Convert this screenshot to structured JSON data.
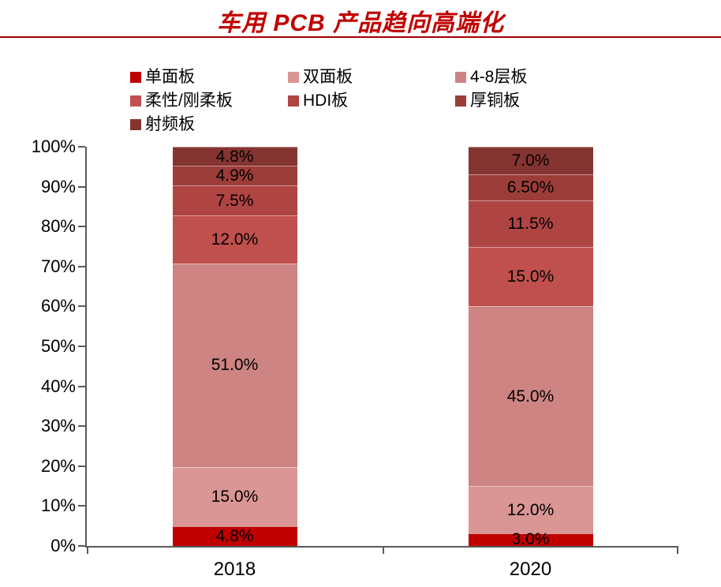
{
  "title": {
    "text": "车用 PCB 产品趋向高端化"
  },
  "style": {
    "title_color": "#C00000",
    "divider_color": "#A00000",
    "axis_color": "#595959",
    "label_color": "#000000",
    "background": "#FFFFFF"
  },
  "chart_data": {
    "type": "bar",
    "stacked": true,
    "title": "车用 PCB 产品趋向高端化",
    "categories": [
      "2018",
      "2020"
    ],
    "series": [
      {
        "name": "单面板",
        "color": "#C00000",
        "values": [
          4.8,
          3.0
        ],
        "labels": [
          "4.8%",
          "3.0%"
        ]
      },
      {
        "name": "双面板",
        "color": "#D99694",
        "values": [
          15.0,
          12.0
        ],
        "labels": [
          "15.0%",
          "12.0%"
        ]
      },
      {
        "name": "4-8层板",
        "color": "#CD8482",
        "values": [
          51.0,
          45.0
        ],
        "labels": [
          "51.0%",
          "45.0%"
        ]
      },
      {
        "name": "柔性/刚柔板",
        "color": "#C0504D",
        "values": [
          12.0,
          15.0
        ],
        "labels": [
          "12.0%",
          "15.0%"
        ]
      },
      {
        "name": "HDI板",
        "color": "#AF4543",
        "values": [
          7.5,
          11.5
        ],
        "labels": [
          "7.5%",
          "11.5%"
        ]
      },
      {
        "name": "厚铜板",
        "color": "#9C3D39",
        "values": [
          4.9,
          6.5
        ],
        "labels": [
          "4.9%",
          "6.50%"
        ]
      },
      {
        "name": "射频板",
        "color": "#843531",
        "values": [
          4.8,
          7.0
        ],
        "labels": [
          "4.8%",
          "7.0%"
        ]
      }
    ],
    "y_ticks": [
      "100%",
      "90%",
      "80%",
      "70%",
      "60%",
      "50%",
      "40%",
      "30%",
      "20%",
      "10%",
      "0%"
    ],
    "ylim": [
      0,
      100
    ],
    "xlabel": "",
    "ylabel": "",
    "grid": false,
    "legend_position": "top"
  }
}
